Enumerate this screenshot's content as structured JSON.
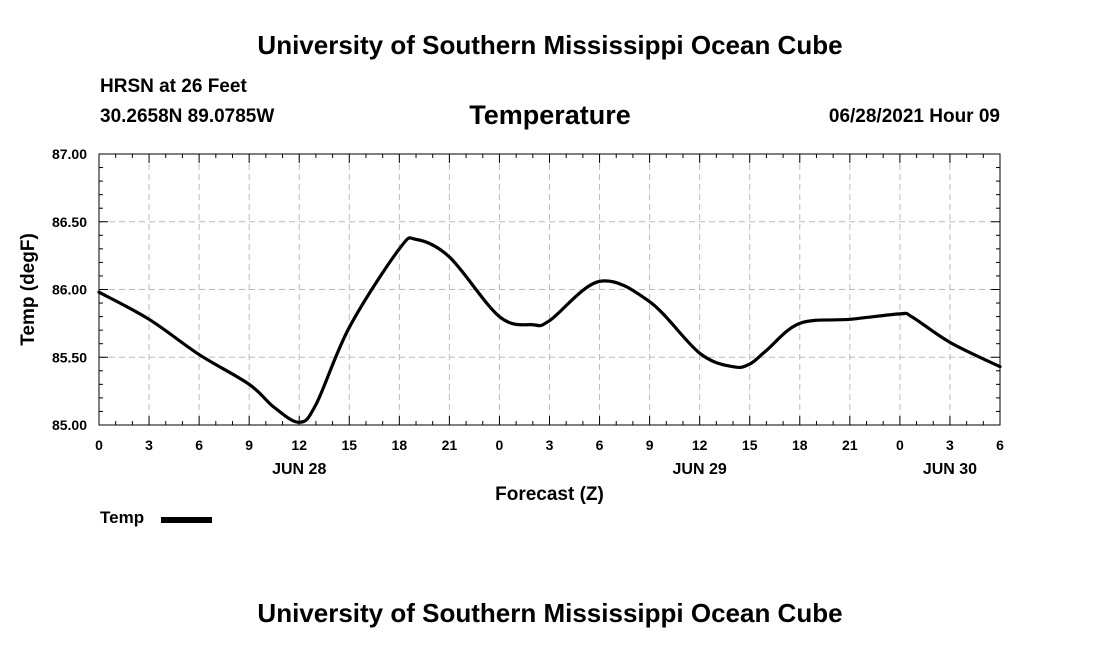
{
  "header": {
    "title": "University of Southern Mississippi Ocean Cube",
    "station": "HRSN at 26 Feet",
    "coords": "30.2658N  89.0785W",
    "chart_title": "Temperature",
    "run_time": "06/28/2021 Hour 09"
  },
  "footer": {
    "title": "University of Southern Mississippi Ocean Cube"
  },
  "legend": {
    "label": "Temp"
  },
  "chart_data": {
    "type": "line",
    "title": "Temperature",
    "xlabel": "Forecast (Z)",
    "ylabel": "Temp (degF)",
    "ylim": [
      85.0,
      87.0
    ],
    "xlim": [
      0,
      54
    ],
    "grid": true,
    "y_ticks": [
      "85.00",
      "85.50",
      "86.00",
      "86.50",
      "87.00"
    ],
    "x_tick_labels": [
      "0",
      "3",
      "6",
      "9",
      "12",
      "15",
      "18",
      "21",
      "0",
      "3",
      "6",
      "9",
      "12",
      "15",
      "18",
      "21",
      "0",
      "3",
      "6"
    ],
    "date_labels": [
      {
        "label": "JUN 28",
        "x": 12
      },
      {
        "label": "JUN 29",
        "x": 36
      },
      {
        "label": "JUN 30",
        "x": 51
      }
    ],
    "series": [
      {
        "name": "Temp",
        "color": "#000000",
        "x": [
          0,
          3,
          6,
          9,
          10.5,
          12,
          13,
          15,
          18,
          19,
          21,
          24,
          26,
          27,
          30,
          33,
          36,
          38,
          39,
          40,
          42,
          45,
          48,
          48.7,
          51,
          54
        ],
        "values": [
          85.98,
          85.78,
          85.52,
          85.3,
          85.13,
          85.02,
          85.15,
          85.72,
          86.3,
          86.37,
          86.24,
          85.8,
          85.74,
          85.77,
          86.06,
          85.91,
          85.53,
          85.43,
          85.45,
          85.55,
          85.75,
          85.78,
          85.82,
          85.8,
          85.61,
          85.43
        ]
      }
    ]
  }
}
